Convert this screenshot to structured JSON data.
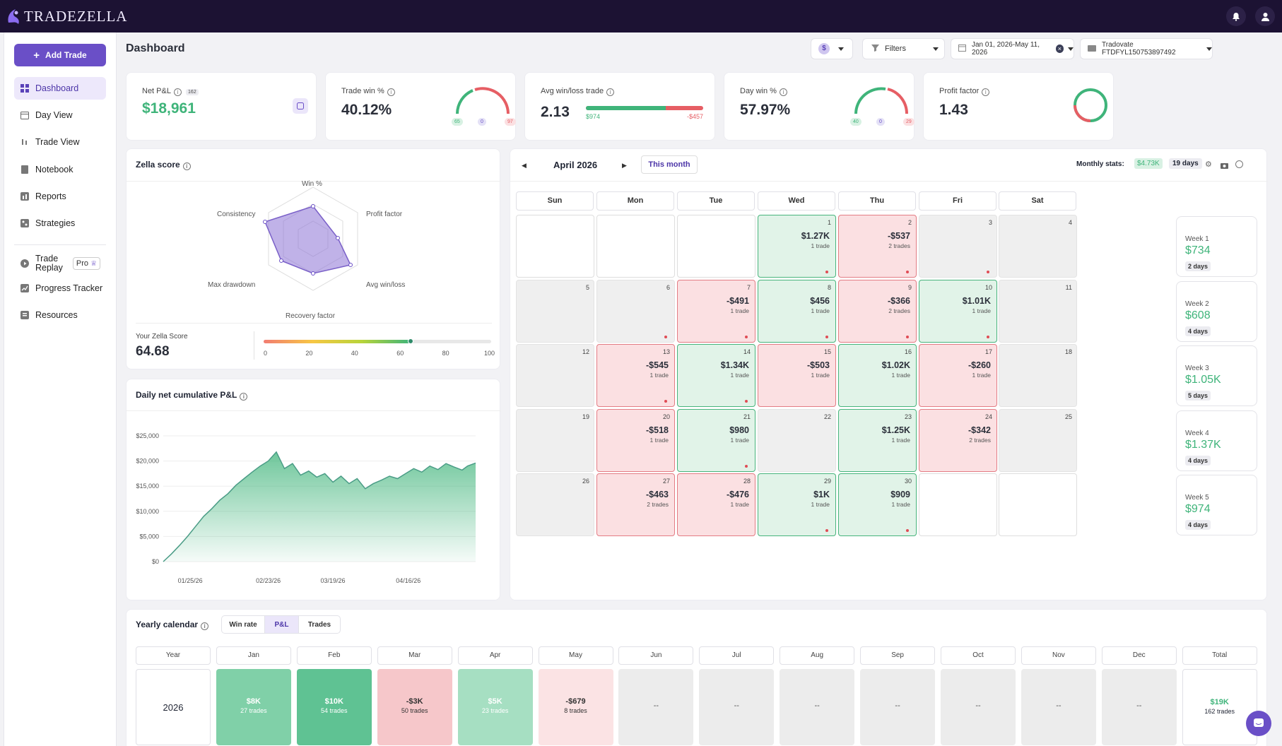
{
  "app": {
    "logo_text": "TRADEZELLA"
  },
  "topbar": {
    "bell_icon": "bell-icon",
    "user_icon": "user-icon"
  },
  "sidebar": {
    "add_trade": "Add Trade",
    "items": [
      {
        "label": "Dashboard",
        "icon": "dashboard-icon"
      },
      {
        "label": "Day View",
        "icon": "calendar-icon"
      },
      {
        "label": "Trade View",
        "icon": "trade-icon"
      },
      {
        "label": "Notebook",
        "icon": "notebook-icon"
      },
      {
        "label": "Reports",
        "icon": "reports-icon"
      },
      {
        "label": "Strategies",
        "icon": "strategies-icon"
      }
    ],
    "replay": {
      "label_line1": "Trade",
      "label_line2": "Replay",
      "badge": "Pro"
    },
    "items2": [
      {
        "label": "Progress Tracker"
      },
      {
        "label": "Resources"
      }
    ]
  },
  "header": {
    "title": "Dashboard",
    "currency": "$",
    "filters": "Filters",
    "date_range": "Jan 01, 2026-May 11, 2026",
    "account": "Tradovate FTDFYL150753897492"
  },
  "stats": {
    "net_pnl": {
      "label": "Net P&L",
      "badge": "162",
      "value": "$18,961"
    },
    "trade_win": {
      "label": "Trade win %",
      "value": "40.12%",
      "wins": "65",
      "be": "0",
      "losses": "97"
    },
    "avg_wl": {
      "label": "Avg win/loss trade",
      "value": "2.13",
      "win": "$974",
      "loss": "-$457"
    },
    "day_win": {
      "label": "Day win %",
      "value": "57.97%",
      "wins": "40",
      "be": "0",
      "losses": "29"
    },
    "profit_factor": {
      "label": "Profit factor",
      "value": "1.43"
    }
  },
  "zella": {
    "title": "Zella score",
    "axes": {
      "win": "Win %",
      "pf": "Profit factor",
      "awl": "Avg win/loss",
      "rf": "Recovery factor",
      "md": "Max drawdown",
      "cons": "Consistency"
    },
    "score_label": "Your Zella Score",
    "score": "64.68",
    "score_value": 64.68,
    "scale": [
      "0",
      "20",
      "40",
      "60",
      "80",
      "100"
    ]
  },
  "cum": {
    "title": "Daily net cumulative P&L",
    "yticks": [
      "$25,000",
      "$20,000",
      "$15,000",
      "$10,000",
      "$5,000",
      "$0"
    ],
    "xticks": [
      "01/25/26",
      "02/23/26",
      "03/19/26",
      "04/16/26"
    ]
  },
  "chart_data": {
    "type": "area",
    "title": "Daily net cumulative P&L",
    "ylim": [
      0,
      25000
    ],
    "x_range": [
      "01/15/26",
      "05/11/26"
    ],
    "x": [
      "01/15/26",
      "01/18/26",
      "01/21/26",
      "01/24/26",
      "01/27/26",
      "01/30/26",
      "02/02/26",
      "02/05/26",
      "02/08/26",
      "02/11/26",
      "02/14/26",
      "02/17/26",
      "02/20/26",
      "02/23/26",
      "02/26/26",
      "03/01/26",
      "03/04/26",
      "03/07/26",
      "03/10/26",
      "03/13/26",
      "03/16/26",
      "03/19/26",
      "03/22/26",
      "03/25/26",
      "03/28/26",
      "03/31/26",
      "04/03/26",
      "04/06/26",
      "04/09/26",
      "04/12/26",
      "04/15/26",
      "04/18/26",
      "04/21/26",
      "04/24/26",
      "04/27/26",
      "04/30/26",
      "05/03/26",
      "05/06/26",
      "05/08/26",
      "05/11/26"
    ],
    "y": [
      0,
      1500,
      3200,
      5000,
      7000,
      9000,
      10500,
      12200,
      13500,
      15200,
      16500,
      17800,
      19000,
      20000,
      21800,
      18500,
      19500,
      17200,
      18000,
      16800,
      17500,
      15800,
      17000,
      15500,
      16500,
      14500,
      15500,
      16200,
      17000,
      16500,
      17500,
      18500,
      17800,
      19000,
      18300,
      19500,
      18800,
      18200,
      19000,
      19600
    ]
  },
  "calendar": {
    "month": "April 2026",
    "this_month": "This month",
    "monthly_label": "Monthly stats:",
    "monthly_value": "$4.73K",
    "monthly_days": "19 days",
    "days": [
      "Sun",
      "Mon",
      "Tue",
      "Wed",
      "Thu",
      "Fri",
      "Sat"
    ],
    "cells": [
      {
        "d": "",
        "t": "blank"
      },
      {
        "d": "",
        "t": "blank"
      },
      {
        "d": "",
        "t": "blank"
      },
      {
        "d": "1",
        "t": "win",
        "a": "$1.27K",
        "n": "1 trade",
        "dot": 1
      },
      {
        "d": "2",
        "t": "loss",
        "a": "-$537",
        "n": "2 trades",
        "dot": 1
      },
      {
        "d": "3",
        "t": "empty",
        "dot": 1
      },
      {
        "d": "4",
        "t": "empty"
      },
      {
        "d": "5",
        "t": "empty"
      },
      {
        "d": "6",
        "t": "empty",
        "dot": 1
      },
      {
        "d": "7",
        "t": "loss",
        "a": "-$491",
        "n": "1 trade",
        "dot": 1
      },
      {
        "d": "8",
        "t": "win",
        "a": "$456",
        "n": "1 trade",
        "dot": 1
      },
      {
        "d": "9",
        "t": "loss",
        "a": "-$366",
        "n": "2 trades",
        "dot": 1
      },
      {
        "d": "10",
        "t": "win",
        "a": "$1.01K",
        "n": "1 trade",
        "dot": 1
      },
      {
        "d": "11",
        "t": "empty"
      },
      {
        "d": "12",
        "t": "empty"
      },
      {
        "d": "13",
        "t": "loss",
        "a": "-$545",
        "n": "1 trade",
        "dot": 1
      },
      {
        "d": "14",
        "t": "win",
        "a": "$1.34K",
        "n": "1 trade",
        "dot": 1
      },
      {
        "d": "15",
        "t": "loss",
        "a": "-$503",
        "n": "1 trade"
      },
      {
        "d": "16",
        "t": "win",
        "a": "$1.02K",
        "n": "1 trade"
      },
      {
        "d": "17",
        "t": "loss",
        "a": "-$260",
        "n": "1 trade"
      },
      {
        "d": "18",
        "t": "empty"
      },
      {
        "d": "19",
        "t": "empty"
      },
      {
        "d": "20",
        "t": "loss",
        "a": "-$518",
        "n": "1 trade"
      },
      {
        "d": "21",
        "t": "win",
        "a": "$980",
        "n": "1 trade",
        "dot": 1
      },
      {
        "d": "22",
        "t": "empty"
      },
      {
        "d": "23",
        "t": "win",
        "a": "$1.25K",
        "n": "1 trade"
      },
      {
        "d": "24",
        "t": "loss",
        "a": "-$342",
        "n": "2 trades"
      },
      {
        "d": "25",
        "t": "empty"
      },
      {
        "d": "26",
        "t": "empty"
      },
      {
        "d": "27",
        "t": "loss",
        "a": "-$463",
        "n": "2 trades"
      },
      {
        "d": "28",
        "t": "loss",
        "a": "-$476",
        "n": "1 trade"
      },
      {
        "d": "29",
        "t": "win",
        "a": "$1K",
        "n": "1 trade",
        "dot": 1
      },
      {
        "d": "30",
        "t": "win",
        "a": "$909",
        "n": "1 trade",
        "dot": 1
      },
      {
        "d": "",
        "t": "blank"
      },
      {
        "d": "",
        "t": "blank"
      }
    ],
    "weeks": [
      {
        "l": "Week 1",
        "v": "$734",
        "d": "2 days"
      },
      {
        "l": "Week 2",
        "v": "$608",
        "d": "4 days"
      },
      {
        "l": "Week 3",
        "v": "$1.05K",
        "d": "5 days"
      },
      {
        "l": "Week 4",
        "v": "$1.37K",
        "d": "4 days"
      },
      {
        "l": "Week 5",
        "v": "$974",
        "d": "4 days"
      }
    ]
  },
  "yearly": {
    "title": "Yearly calendar",
    "tabs": [
      "Win rate",
      "P&L",
      "Trades"
    ],
    "headers": [
      "Year",
      "Jan",
      "Feb",
      "Mar",
      "Apr",
      "May",
      "Jun",
      "Jul",
      "Aug",
      "Sep",
      "Oct",
      "Nov",
      "Dec",
      "Total"
    ],
    "year": "2026",
    "months": [
      {
        "v": "$8K",
        "t": "27 trades",
        "c": "#80d0a8",
        "fc": "#fff"
      },
      {
        "v": "$10K",
        "t": "54 trades",
        "c": "#5fc293",
        "fc": "#fff"
      },
      {
        "v": "-$3K",
        "t": "50 trades",
        "c": "#f6c7ca",
        "fc": "#333"
      },
      {
        "v": "$5K",
        "t": "23 trades",
        "c": "#a6dfc2",
        "fc": "#fff"
      },
      {
        "v": "-$679",
        "t": "8 trades",
        "c": "#fbe3e4",
        "fc": "#333"
      },
      {
        "v": "--",
        "t": "",
        "c": "#ececec",
        "fc": "#555"
      },
      {
        "v": "--",
        "t": "",
        "c": "#ececec",
        "fc": "#555"
      },
      {
        "v": "--",
        "t": "",
        "c": "#ececec",
        "fc": "#555"
      },
      {
        "v": "--",
        "t": "",
        "c": "#ececec",
        "fc": "#555"
      },
      {
        "v": "--",
        "t": "",
        "c": "#ececec",
        "fc": "#555"
      },
      {
        "v": "--",
        "t": "",
        "c": "#ececec",
        "fc": "#555"
      },
      {
        "v": "--",
        "t": "",
        "c": "#ececec",
        "fc": "#555"
      }
    ],
    "total": {
      "v": "$19K",
      "t": "162 trades"
    }
  }
}
